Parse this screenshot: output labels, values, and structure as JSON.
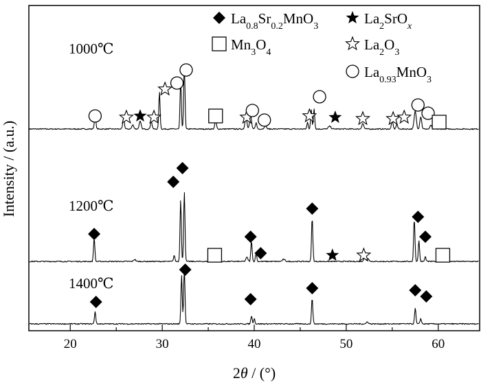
{
  "chart_data": {
    "type": "line",
    "title": "",
    "xlabel": {
      "prefix": "2",
      "var": "θ",
      "suffix": " / (°)"
    },
    "ylabel": "Intensity / (a.u.)",
    "xlim": [
      15.5,
      64.5
    ],
    "xticks": [
      20,
      30,
      40,
      50,
      60
    ],
    "grid": false,
    "legend": {
      "placement": "top-right",
      "entries": [
        {
          "marker": "diamond",
          "parts": [
            [
              "La",
              ""
            ],
            [
              "0.8",
              "sub"
            ],
            [
              "Sr",
              ""
            ],
            [
              "0.2",
              "sub"
            ],
            [
              "MnO",
              ""
            ],
            [
              "3",
              "sub"
            ]
          ]
        },
        {
          "marker": "star-filled",
          "parts": [
            [
              "La",
              ""
            ],
            [
              "2",
              "sub"
            ],
            [
              "SrO",
              ""
            ],
            [
              "x",
              "subi"
            ]
          ]
        },
        {
          "marker": "square",
          "parts": [
            [
              "Mn",
              ""
            ],
            [
              "3",
              "sub"
            ],
            [
              "O",
              ""
            ],
            [
              "4",
              "sub"
            ]
          ]
        },
        {
          "marker": "star-open",
          "parts": [
            [
              "La",
              ""
            ],
            [
              "2",
              "sub"
            ],
            [
              "O",
              ""
            ],
            [
              "3",
              "sub"
            ]
          ]
        },
        {
          "marker": "circle",
          "parts": [
            [
              "La",
              ""
            ],
            [
              "0.93",
              "sub"
            ],
            [
              "MnO",
              ""
            ],
            [
              "3",
              "sub"
            ]
          ]
        }
      ]
    },
    "series": [
      {
        "name": "1000℃",
        "baseline": 17,
        "peaks": [
          [
            22.7,
            18,
            0.12
          ],
          [
            25.8,
            16,
            0.12
          ],
          [
            26.8,
            6,
            0.15
          ],
          [
            27.6,
            11,
            0.15
          ],
          [
            28.8,
            12,
            0.12
          ],
          [
            29.7,
            54,
            0.1
          ],
          [
            32.0,
            70,
            0.1
          ],
          [
            32.4,
            96,
            0.1
          ],
          [
            35.8,
            13,
            0.12
          ],
          [
            39.1,
            18,
            0.14
          ],
          [
            39.6,
            20,
            0.14
          ],
          [
            40.2,
            9,
            0.12
          ],
          [
            41.2,
            6,
            0.15
          ],
          [
            45.8,
            10,
            0.1
          ],
          [
            46.2,
            28,
            0.1
          ],
          [
            46.5,
            30,
            0.1
          ],
          [
            48.2,
            4,
            0.2
          ],
          [
            51.8,
            8,
            0.15
          ],
          [
            55.0,
            12,
            0.12
          ],
          [
            55.5,
            7,
            0.12
          ],
          [
            57.5,
            26,
            0.16
          ],
          [
            58.1,
            18,
            0.14
          ],
          [
            59.2,
            6,
            0.12
          ]
        ],
        "markers": [
          [
            "circle",
            22.7,
            36
          ],
          [
            "star-open",
            26.1,
            34
          ],
          [
            "star-filled",
            27.6,
            36
          ],
          [
            "star-open",
            29.1,
            34
          ],
          [
            "star-open",
            30.3,
            75
          ],
          [
            "circle",
            31.6,
            84
          ],
          [
            "circle",
            32.6,
            103
          ],
          [
            "square",
            35.8,
            36
          ],
          [
            "star-open",
            39.2,
            34
          ],
          [
            "circle",
            39.8,
            44
          ],
          [
            "circle",
            41.1,
            30
          ],
          [
            "star-open",
            46.0,
            36
          ],
          [
            "circle",
            47.1,
            64
          ],
          [
            "star-filled",
            48.8,
            34
          ],
          [
            "star-open",
            51.8,
            32
          ],
          [
            "star-open",
            55.1,
            32
          ],
          [
            "star-open",
            56.3,
            34
          ],
          [
            "circle",
            57.8,
            52
          ],
          [
            "circle",
            58.9,
            40
          ],
          [
            "square",
            60.1,
            27
          ]
        ]
      },
      {
        "name": "1200℃",
        "baseline": 15,
        "peaks": [
          [
            22.6,
            34,
            0.1
          ],
          [
            27.0,
            3,
            0.15
          ],
          [
            31.3,
            9,
            0.1
          ],
          [
            32.0,
            90,
            0.1
          ],
          [
            32.4,
            102,
            0.1
          ],
          [
            35.7,
            6,
            0.12
          ],
          [
            39.2,
            6,
            0.15
          ],
          [
            39.7,
            30,
            0.1
          ],
          [
            40.2,
            12,
            0.1
          ],
          [
            43.2,
            3,
            0.2
          ],
          [
            46.3,
            64,
            0.1
          ],
          [
            52.0,
            6,
            0.15
          ],
          [
            52.4,
            4,
            0.15
          ],
          [
            57.4,
            62,
            0.1
          ],
          [
            57.9,
            30,
            0.1
          ],
          [
            58.6,
            7,
            0.1
          ]
        ],
        "markers": [
          [
            "diamond",
            22.6,
            55
          ],
          [
            "diamond",
            31.2,
            131
          ],
          [
            "diamond",
            32.2,
            151
          ],
          [
            "square",
            35.7,
            24
          ],
          [
            "diamond",
            39.6,
            51
          ],
          [
            "diamond",
            40.7,
            27
          ],
          [
            "diamond",
            46.3,
            92
          ],
          [
            "star-filled",
            48.5,
            24
          ],
          [
            "star-open",
            51.9,
            24
          ],
          [
            "diamond",
            57.8,
            80
          ],
          [
            "diamond",
            58.6,
            51
          ],
          [
            "square",
            60.5,
            24
          ]
        ]
      },
      {
        "name": "1400℃",
        "baseline": 0,
        "peaks": [
          [
            22.7,
            18,
            0.1
          ],
          [
            32.1,
            71,
            0.1
          ],
          [
            32.4,
            82,
            0.1
          ],
          [
            39.7,
            12,
            0.1
          ],
          [
            40.0,
            8,
            0.1
          ],
          [
            46.3,
            38,
            0.1
          ],
          [
            52.3,
            3,
            0.15
          ],
          [
            57.5,
            23,
            0.1
          ],
          [
            58.1,
            8,
            0.1
          ]
        ],
        "markers": [
          [
            "diamond",
            22.8,
            32
          ],
          [
            "diamond",
            32.5,
            79
          ],
          [
            "diamond",
            39.6,
            36
          ],
          [
            "diamond",
            46.3,
            52
          ],
          [
            "diamond",
            57.5,
            49
          ],
          [
            "diamond",
            58.7,
            40
          ]
        ]
      }
    ]
  }
}
